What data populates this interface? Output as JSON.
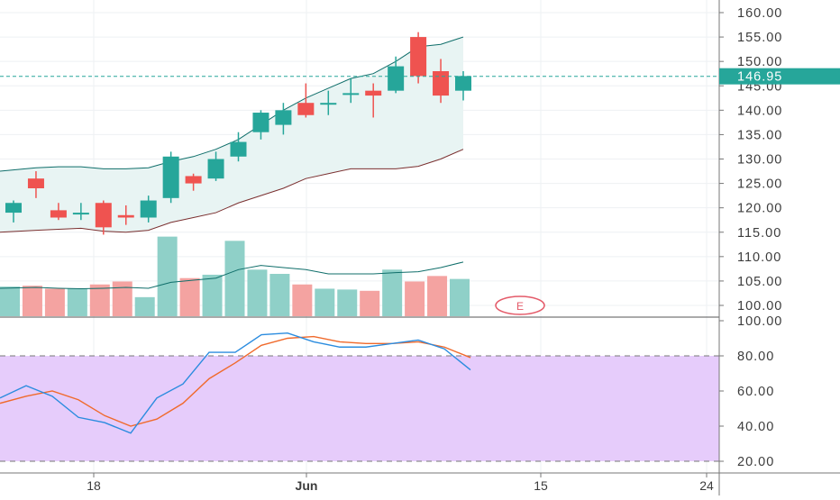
{
  "colors": {
    "up": "#26a69a",
    "down": "#ef5350",
    "bb_band": "#0f6e6a",
    "bb_fill": "#e8f4f3",
    "bb_basis": "#7a2f2f",
    "volume_up": "#8fd0c8",
    "volume_down": "#f4a3a1",
    "volume_ma": "#0f6e6a",
    "stoch_k": "#2b8cdf",
    "stoch_d": "#f06a2c",
    "stoch_band": "#e6ccfb",
    "price_line": "#26a69a",
    "grid": "#eef0f3",
    "axis_text": "#3c3c3c"
  },
  "event_marker": {
    "label": "E",
    "color": "#e45a69"
  },
  "last_price_label": "146.95",
  "chart_data": [
    {
      "type": "candlestick",
      "x_labels": [
        {
          "label": "18",
          "bold": false
        },
        {
          "label": "Jun",
          "bold": true
        },
        {
          "label": "15",
          "bold": false
        },
        {
          "label": "24",
          "bold": false
        }
      ],
      "price_ticks": [
        "100.00",
        "105.00",
        "110.00",
        "115.00",
        "120.00",
        "125.00",
        "130.00",
        "135.00",
        "140.00",
        "145.00",
        "150.00",
        "155.00",
        "160.00"
      ],
      "ylim": [
        98,
        161.5
      ],
      "last_price": 146.95,
      "candles": [
        {
          "o": 119.0,
          "h": 121.5,
          "l": 117.0,
          "c": 121.0
        },
        {
          "o": 126.0,
          "h": 127.5,
          "l": 122.0,
          "c": 124.0
        },
        {
          "o": 119.5,
          "h": 121.0,
          "l": 117.5,
          "c": 118.0
        },
        {
          "o": 119.0,
          "h": 121.0,
          "l": 117.5,
          "c": 119.0
        },
        {
          "o": 121.0,
          "h": 121.5,
          "l": 114.5,
          "c": 116.0
        },
        {
          "o": 118.5,
          "h": 120.5,
          "l": 116.5,
          "c": 118.0
        },
        {
          "o": 118.0,
          "h": 122.5,
          "l": 117.0,
          "c": 121.5
        },
        {
          "o": 122.0,
          "h": 131.5,
          "l": 121.0,
          "c": 130.5
        },
        {
          "o": 126.5,
          "h": 127.0,
          "l": 123.5,
          "c": 125.0
        },
        {
          "o": 126.0,
          "h": 131.5,
          "l": 125.5,
          "c": 130.0
        },
        {
          "o": 130.5,
          "h": 135.5,
          "l": 129.5,
          "c": 133.5
        },
        {
          "o": 135.5,
          "h": 140.0,
          "l": 134.0,
          "c": 139.5
        },
        {
          "o": 137.0,
          "h": 141.5,
          "l": 135.0,
          "c": 140.0
        },
        {
          "o": 141.5,
          "h": 145.5,
          "l": 138.5,
          "c": 139.0
        },
        {
          "o": 141.5,
          "h": 144.0,
          "l": 139.0,
          "c": 141.5
        },
        {
          "o": 143.5,
          "h": 146.5,
          "l": 141.5,
          "c": 143.5
        },
        {
          "o": 144.0,
          "h": 145.5,
          "l": 138.5,
          "c": 143.0
        },
        {
          "o": 144.0,
          "h": 151.0,
          "l": 143.5,
          "c": 149.0
        },
        {
          "o": 155.0,
          "h": 156.0,
          "l": 145.5,
          "c": 147.0
        },
        {
          "o": 148.0,
          "h": 150.5,
          "l": 141.5,
          "c": 143.0
        },
        {
          "o": 144.0,
          "h": 148.0,
          "l": 142.0,
          "c": 147.0
        }
      ],
      "volume": [
        {
          "v": 7.0,
          "up": true
        },
        {
          "v": 7.2,
          "up": false
        },
        {
          "v": 6.5,
          "up": false
        },
        {
          "v": 6.5,
          "up": true
        },
        {
          "v": 7.5,
          "up": false
        },
        {
          "v": 8.2,
          "up": false
        },
        {
          "v": 4.5,
          "up": true
        },
        {
          "v": 18.8,
          "up": true
        },
        {
          "v": 9.0,
          "up": false
        },
        {
          "v": 9.8,
          "up": true
        },
        {
          "v": 17.8,
          "up": true
        },
        {
          "v": 11.0,
          "up": true
        },
        {
          "v": 10.0,
          "up": true
        },
        {
          "v": 7.5,
          "up": false
        },
        {
          "v": 6.5,
          "up": true
        },
        {
          "v": 6.3,
          "up": true
        },
        {
          "v": 6.0,
          "up": false
        },
        {
          "v": 11.0,
          "up": true
        },
        {
          "v": 8.2,
          "up": false
        },
        {
          "v": 9.5,
          "up": false
        },
        {
          "v": 8.8,
          "up": true
        }
      ],
      "volume_max": 32,
      "bb_upper": [
        127.5,
        128.2,
        128.4,
        128.4,
        128.0,
        128.0,
        128.2,
        129.5,
        130.5,
        132.0,
        134.0,
        137.0,
        140.0,
        142.5,
        144.5,
        146.5,
        147.5,
        150.0,
        153.0,
        153.5,
        155.0
      ],
      "bb_lower": [
        115.0,
        115.4,
        115.6,
        115.8,
        115.2,
        115.0,
        115.4,
        117.0,
        118.0,
        119.0,
        121.0,
        122.5,
        124.0,
        126.0,
        127.0,
        128.0,
        128.0,
        128.0,
        128.5,
        130.0,
        132.0
      ],
      "bb_basis": [
        115.0,
        115.4,
        115.6,
        115.8,
        115.2,
        115.0,
        115.4,
        117.0,
        118.0,
        119.0,
        121.0,
        122.5,
        124.0,
        126.0,
        127.0,
        128.0,
        128.0,
        128.0,
        128.5,
        130.0,
        132.0
      ],
      "volume_ma": [
        6.6,
        6.8,
        6.6,
        6.5,
        6.6,
        6.8,
        6.6,
        8.0,
        8.5,
        9.0,
        11.0,
        12.0,
        11.5,
        11.0,
        10.0,
        10.0,
        10.0,
        10.3,
        10.5,
        11.5,
        12.8
      ]
    },
    {
      "type": "line",
      "y_ticks": [
        "20.00",
        "40.00",
        "60.00",
        "80.00",
        "100.00"
      ],
      "ylim": [
        15,
        101
      ],
      "band": [
        20,
        80
      ],
      "series": [
        {
          "values": [
            56,
            63,
            57,
            45,
            42,
            36,
            56,
            64,
            82,
            82,
            92,
            93,
            88,
            85,
            85,
            87,
            89,
            84,
            72
          ]
        },
        {
          "values": [
            53,
            57,
            60,
            55,
            46,
            40,
            44,
            53,
            67,
            76,
            86,
            90,
            91,
            88,
            87,
            87,
            88,
            85,
            79
          ]
        }
      ]
    }
  ]
}
